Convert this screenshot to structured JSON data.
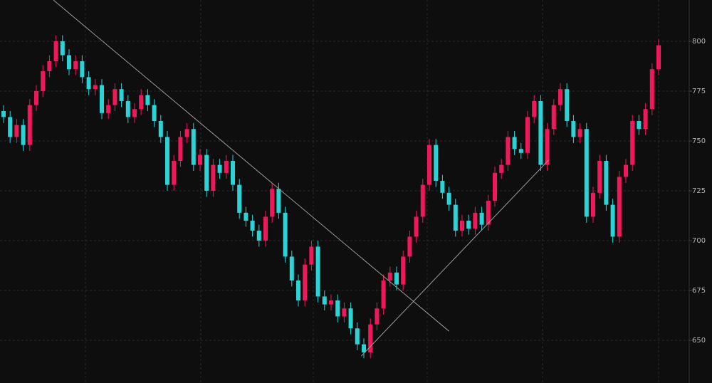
{
  "chart_data": {
    "type": "candlestick",
    "up_color": "#f0185a",
    "down_color": "#2ad3d6",
    "grid": true,
    "ylim": [
      628.6,
      820.7
    ],
    "yticks": [
      650,
      675,
      700,
      725,
      750,
      775,
      800
    ],
    "open": [
      765,
      762,
      752,
      758,
      748,
      768,
      775,
      785,
      790,
      800,
      793,
      786,
      790,
      782,
      776,
      778,
      764,
      768,
      776,
      770,
      762,
      766,
      773,
      768,
      760,
      752,
      728,
      740,
      752,
      756,
      738,
      743,
      725,
      738,
      734,
      740,
      728,
      714,
      710,
      705,
      700,
      712,
      726,
      714,
      692,
      680,
      670,
      688,
      697,
      672,
      668,
      670,
      662,
      666,
      656,
      648,
      644,
      658,
      666,
      680,
      684,
      678,
      692,
      702,
      712,
      728,
      748,
      730,
      724,
      718,
      705,
      710,
      706,
      714,
      708,
      720,
      734,
      738,
      752,
      746,
      744,
      762,
      770,
      738,
      756,
      768,
      776,
      760,
      752,
      756,
      712,
      724,
      740,
      718,
      702,
      732,
      738,
      760,
      756,
      766,
      786
    ],
    "high": [
      768,
      765,
      761,
      761,
      771,
      778,
      788,
      793,
      803,
      803,
      796,
      793,
      793,
      785,
      781,
      781,
      771,
      779,
      779,
      773,
      769,
      776,
      776,
      771,
      763,
      755,
      743,
      755,
      759,
      759,
      746,
      746,
      741,
      741,
      743,
      743,
      731,
      717,
      713,
      708,
      715,
      729,
      729,
      717,
      695,
      683,
      691,
      700,
      700,
      675,
      673,
      673,
      669,
      669,
      659,
      651,
      661,
      669,
      683,
      687,
      687,
      695,
      705,
      715,
      731,
      751,
      751,
      733,
      727,
      721,
      713,
      713,
      717,
      717,
      723,
      737,
      741,
      755,
      755,
      749,
      765,
      773,
      773,
      759,
      771,
      779,
      779,
      763,
      759,
      759,
      727,
      743,
      743,
      721,
      735,
      741,
      763,
      763,
      769,
      789,
      801
    ],
    "low": [
      759,
      749,
      749,
      745,
      745,
      765,
      772,
      782,
      787,
      790,
      783,
      783,
      779,
      773,
      773,
      761,
      761,
      765,
      767,
      759,
      759,
      763,
      765,
      757,
      749,
      725,
      725,
      737,
      749,
      735,
      735,
      722,
      722,
      731,
      731,
      725,
      711,
      707,
      702,
      697,
      697,
      709,
      711,
      689,
      677,
      667,
      667,
      685,
      669,
      665,
      665,
      659,
      659,
      653,
      645,
      641,
      641,
      655,
      663,
      677,
      675,
      675,
      689,
      699,
      709,
      725,
      727,
      721,
      715,
      702,
      702,
      703,
      703,
      705,
      705,
      717,
      731,
      735,
      743,
      741,
      741,
      759,
      735,
      735,
      753,
      765,
      757,
      749,
      749,
      709,
      709,
      721,
      715,
      699,
      699,
      729,
      735,
      753,
      753,
      763,
      783
    ],
    "close": [
      762,
      752,
      758,
      748,
      768,
      775,
      785,
      790,
      800,
      793,
      786,
      790,
      782,
      776,
      778,
      764,
      768,
      776,
      770,
      762,
      766,
      773,
      768,
      760,
      752,
      728,
      740,
      752,
      756,
      738,
      743,
      725,
      738,
      734,
      740,
      728,
      714,
      710,
      705,
      700,
      712,
      726,
      714,
      692,
      680,
      670,
      688,
      697,
      672,
      668,
      670,
      662,
      666,
      656,
      648,
      644,
      658,
      666,
      680,
      684,
      678,
      692,
      702,
      712,
      728,
      748,
      730,
      724,
      718,
      705,
      710,
      706,
      714,
      708,
      720,
      734,
      738,
      752,
      746,
      744,
      762,
      770,
      738,
      756,
      768,
      776,
      760,
      752,
      756,
      712,
      724,
      740,
      718,
      702,
      732,
      738,
      760,
      756,
      766,
      786,
      798
    ],
    "trend_lines": [
      {
        "start": [
          7.6,
          820.7
        ],
        "end": [
          68,
          654.6
        ]
      },
      {
        "start": [
          54.6,
          642.1
        ],
        "end": [
          83.2,
          740.4
        ]
      }
    ]
  }
}
